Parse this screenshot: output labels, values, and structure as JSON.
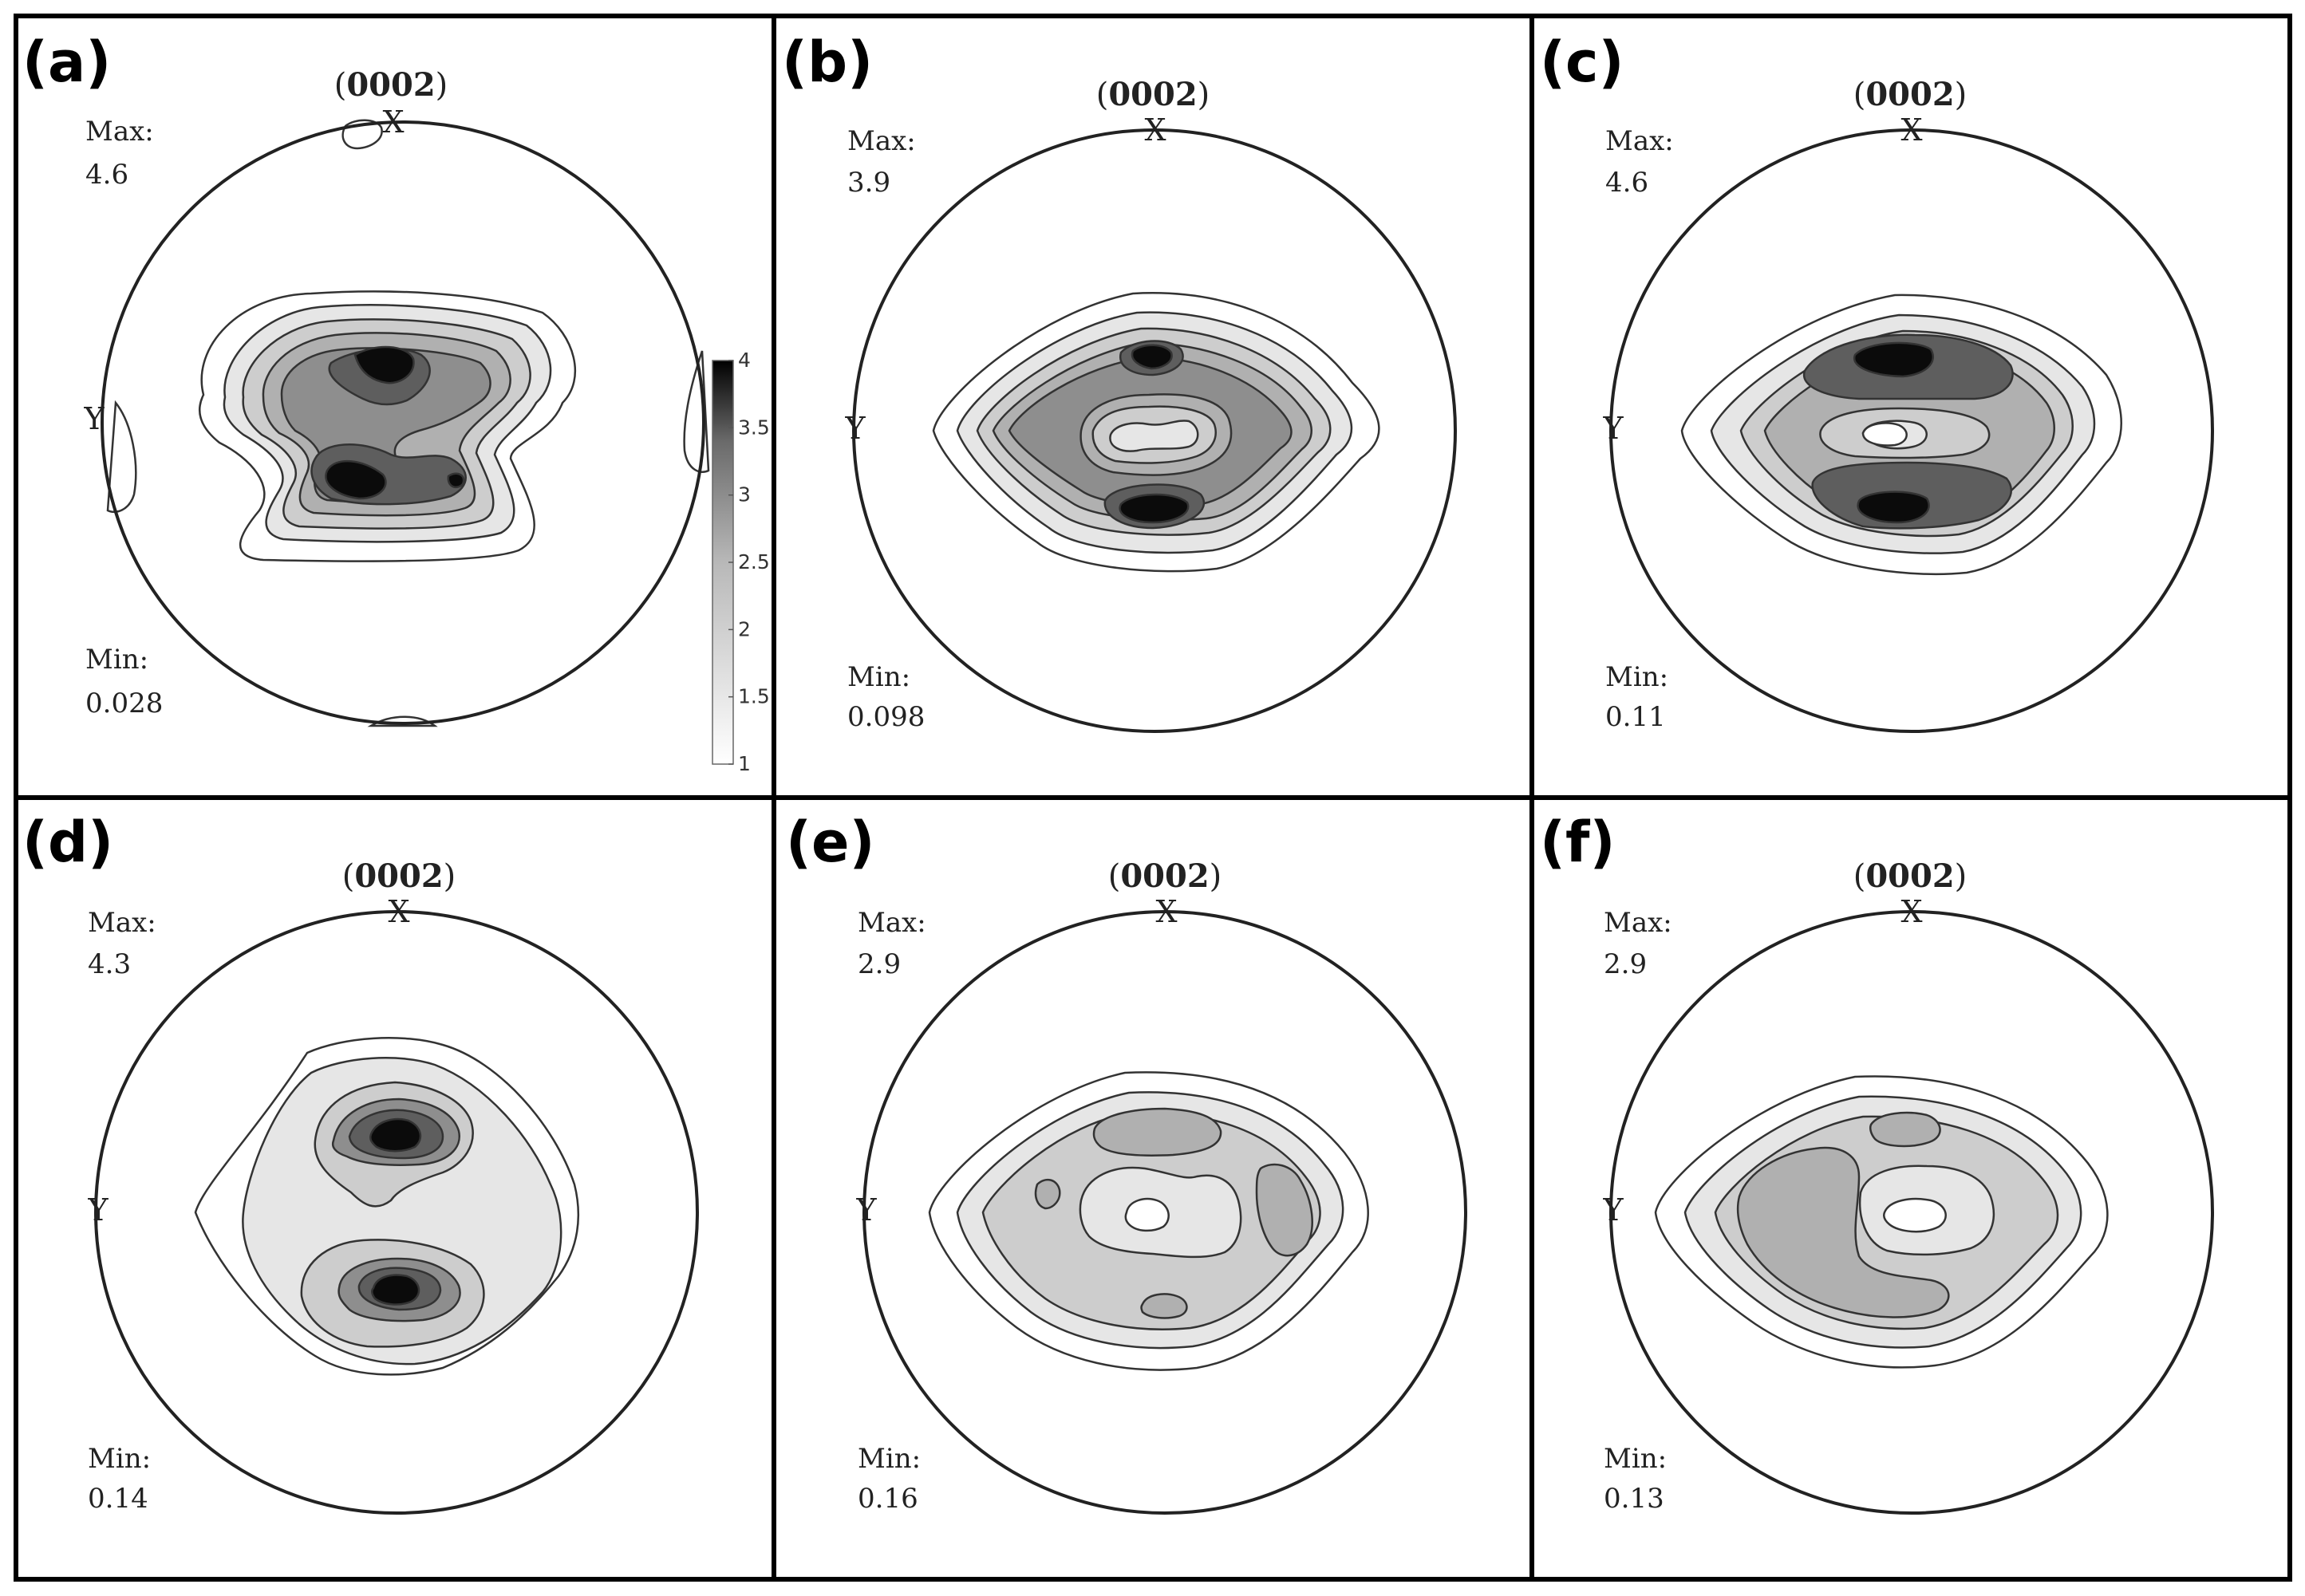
{
  "figure": {
    "pole_label": "0002",
    "axis_x": "X",
    "axis_y": "Y",
    "max_label": "Max:",
    "min_label": "Min:",
    "panels": [
      {
        "id": "a",
        "label": "(a)",
        "max": "4.6",
        "min": "0.028"
      },
      {
        "id": "b",
        "label": "(b)",
        "max": "3.9",
        "min": "0.098"
      },
      {
        "id": "c",
        "label": "(c)",
        "max": "4.6",
        "min": "0.11"
      },
      {
        "id": "d",
        "label": "(d)",
        "max": "4.3",
        "min": "0.14"
      },
      {
        "id": "e",
        "label": "(e)",
        "max": "2.9",
        "min": "0.16"
      },
      {
        "id": "f",
        "label": "(f)",
        "max": "2.9",
        "min": "0.13"
      }
    ],
    "colorbar": {
      "ticks": [
        "4",
        "3.5",
        "3",
        "2.5",
        "2",
        "1.5",
        "1"
      ],
      "range": [
        1,
        4
      ],
      "colormap": "gray-reversed"
    }
  },
  "colors": {
    "level_1": "#ffffff",
    "level_1_5": "#e6e6e6",
    "level_2": "#cdcdcd",
    "level_2_5": "#b0b0b0",
    "level_3": "#8e8e8e",
    "level_3_5": "#5e5e5e",
    "level_4": "#0b0b0b"
  }
}
